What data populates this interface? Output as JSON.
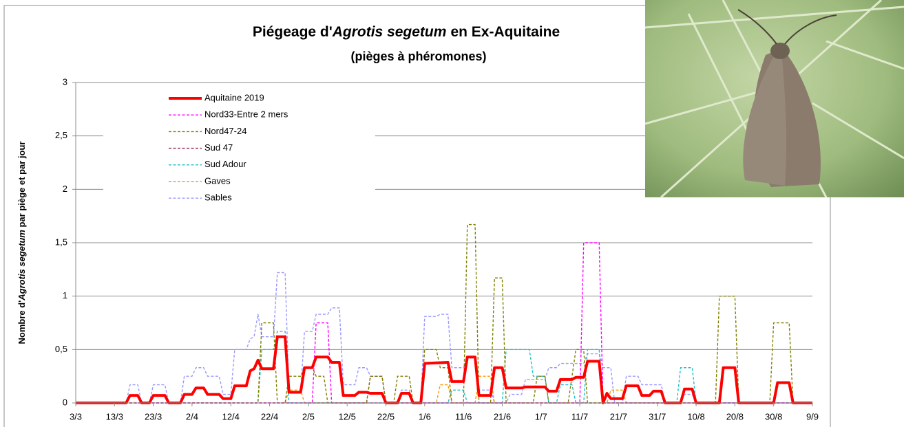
{
  "chart_data": {
    "type": "line",
    "title": [
      "Piégeage d'",
      "Agrotis segetum",
      "en Ex-Aquitaine"
    ],
    "subtitle": "(pièges à phéromones)",
    "y_label": [
      "Nombre d'",
      "Agrotis segetum",
      " par piège et par jour"
    ],
    "xlim": [
      0,
      190
    ],
    "xticks": [
      {
        "value": 0,
        "label": "3/3"
      },
      {
        "value": 10,
        "label": "13/3"
      },
      {
        "value": 20,
        "label": "23/3"
      },
      {
        "value": 30,
        "label": "2/4"
      },
      {
        "value": 40,
        "label": "12/4"
      },
      {
        "value": 50,
        "label": "22/4"
      },
      {
        "value": 60,
        "label": "2/5"
      },
      {
        "value": 70,
        "label": "12/5"
      },
      {
        "value": 80,
        "label": "22/5"
      },
      {
        "value": 90,
        "label": "1/6"
      },
      {
        "value": 100,
        "label": "11/6"
      },
      {
        "value": 110,
        "label": "21/6"
      },
      {
        "value": 120,
        "label": "1/7"
      },
      {
        "value": 130,
        "label": "11/7"
      },
      {
        "value": 140,
        "label": "21/7"
      },
      {
        "value": 150,
        "label": "31/7"
      },
      {
        "value": 160,
        "label": "10/8"
      },
      {
        "value": 170,
        "label": "20/8"
      },
      {
        "value": 180,
        "label": "30/8"
      },
      {
        "value": 190,
        "label": "9/9"
      }
    ],
    "ylim": [
      0,
      3
    ],
    "yticks": [
      0,
      {
        "value": 0.5,
        "label": "0,5"
      },
      1,
      {
        "value": 1.5,
        "label": "1,5"
      },
      2,
      {
        "value": 2.5,
        "label": "2,5"
      },
      3
    ],
    "grid": true,
    "legend": "upper left",
    "series": [
      {
        "name": "Aquitaine 2019",
        "color": "#ff0000",
        "linestyle": "solid",
        "x": [
          0,
          13,
          14,
          16,
          17,
          19,
          20,
          23,
          24,
          27,
          28,
          30,
          31,
          33,
          34,
          37,
          38,
          40,
          41,
          44,
          45,
          46,
          47,
          48,
          51,
          52,
          54,
          55,
          58,
          59,
          61,
          62,
          65,
          66,
          68,
          69,
          72,
          73,
          75,
          76,
          79,
          80,
          83,
          84,
          86,
          87,
          89,
          90,
          96,
          97,
          100,
          101,
          103,
          104,
          107,
          108,
          110,
          111,
          115,
          116,
          121,
          122,
          124,
          125,
          128,
          129,
          131,
          132,
          135,
          136,
          137,
          138,
          141,
          142,
          145,
          146,
          148,
          149,
          151,
          152,
          156,
          157,
          159,
          160,
          166,
          167,
          170,
          171,
          180,
          181,
          184,
          185,
          190
        ],
        "values": [
          0,
          0,
          0.07,
          0.07,
          0,
          0,
          0.07,
          0.07,
          0,
          0,
          0.08,
          0.08,
          0.14,
          0.14,
          0.08,
          0.08,
          0.04,
          0.04,
          0.16,
          0.16,
          0.3,
          0.32,
          0.4,
          0.32,
          0.32,
          0.62,
          0.62,
          0.1,
          0.1,
          0.33,
          0.33,
          0.43,
          0.43,
          0.38,
          0.38,
          0.07,
          0.07,
          0.1,
          0.1,
          0.09,
          0.09,
          0,
          0,
          0.09,
          0.09,
          0,
          0,
          0.37,
          0.38,
          0.2,
          0.2,
          0.43,
          0.43,
          0.07,
          0.07,
          0.33,
          0.33,
          0.14,
          0.14,
          0.15,
          0.15,
          0.11,
          0.11,
          0.22,
          0.22,
          0.24,
          0.24,
          0.39,
          0.39,
          0,
          0.09,
          0.04,
          0.04,
          0.16,
          0.16,
          0.07,
          0.07,
          0.11,
          0.11,
          0,
          0,
          0.13,
          0.13,
          0,
          0,
          0.33,
          0.33,
          0,
          0,
          0.19,
          0.19,
          0,
          0
        ]
      },
      {
        "name": "Nord33-Entre 2 mers",
        "color": "#ff00ff",
        "linestyle": "dashed",
        "x": [
          0,
          61,
          62,
          65,
          66,
          130,
          131,
          135,
          136,
          190
        ],
        "values": [
          0,
          0,
          0.75,
          0.75,
          0,
          0,
          1.5,
          1.5,
          0,
          0
        ]
      },
      {
        "name": "Nord47-24",
        "color": "#808000",
        "linestyle": "dashed",
        "x": [
          0,
          47,
          48,
          51,
          52,
          54,
          55,
          58,
          59,
          61,
          62,
          64,
          65,
          75,
          76,
          79,
          80,
          82,
          83,
          86,
          87,
          89,
          90,
          93,
          94,
          96,
          97,
          100,
          101,
          103,
          104,
          107,
          108,
          110,
          111,
          118,
          119,
          121,
          122,
          127,
          128,
          129,
          131,
          132,
          165,
          166,
          170,
          171,
          179,
          180,
          184,
          185,
          190
        ],
        "values": [
          0,
          0,
          0.75,
          0.75,
          0,
          0,
          0.25,
          0.25,
          0.33,
          0.33,
          0.25,
          0.25,
          0,
          0,
          0.25,
          0.25,
          0,
          0,
          0.25,
          0.25,
          0,
          0,
          0.5,
          0.5,
          0.33,
          0.33,
          0,
          0,
          1.67,
          1.67,
          0,
          0,
          1.17,
          1.17,
          0,
          0,
          0.25,
          0.25,
          0,
          0,
          0.25,
          0.5,
          0.5,
          0,
          0,
          1,
          1,
          0,
          0,
          0.75,
          0.75,
          0,
          0
        ]
      },
      {
        "name": "Sud 47",
        "color": "#8b1c4e",
        "linestyle": "dashed",
        "x": [
          0,
          75,
          76,
          79,
          80,
          190
        ],
        "values": [
          0,
          0,
          0.25,
          0.25,
          0,
          0
        ]
      },
      {
        "name": "Sud Adour",
        "color": "#1fbfca",
        "linestyle": "dashed",
        "x": [
          0,
          47,
          48,
          51,
          52,
          54,
          55,
          96,
          97,
          100,
          101,
          110,
          111,
          117,
          118,
          121,
          122,
          124,
          125,
          128,
          129,
          131,
          132,
          135,
          136,
          155,
          156,
          159,
          160,
          190
        ],
        "values": [
          0,
          0,
          0.5,
          0.5,
          0.67,
          0.67,
          0,
          0,
          0.12,
          0.12,
          0,
          0,
          0.5,
          0.5,
          0.25,
          0.25,
          0,
          0,
          0.17,
          0.17,
          0,
          0,
          0.5,
          0.5,
          0,
          0,
          0.33,
          0.33,
          0,
          0
        ]
      },
      {
        "name": "Gaves",
        "color": "#ff9900",
        "linestyle": "dashed",
        "x": [
          0,
          54,
          55,
          58,
          59,
          93,
          94,
          96,
          97,
          103,
          104,
          107,
          108,
          137,
          138,
          141,
          142,
          190
        ],
        "values": [
          0,
          0,
          0.12,
          0.12,
          0,
          0,
          0.17,
          0.17,
          0,
          0,
          0.25,
          0.25,
          0,
          0,
          0.12,
          0.12,
          0,
          0
        ]
      },
      {
        "name": "Sables",
        "color": "#9999ff",
        "linestyle": "dashed",
        "x": [
          0,
          13,
          14,
          16,
          17,
          19,
          20,
          23,
          24,
          27,
          28,
          30,
          31,
          33,
          34,
          37,
          38,
          40,
          41,
          44,
          45,
          46,
          47,
          48,
          51,
          52,
          54,
          55,
          58,
          59,
          61,
          62,
          65,
          66,
          68,
          69,
          72,
          73,
          75,
          76,
          79,
          80,
          83,
          84,
          86,
          87,
          89,
          90,
          93,
          94,
          96,
          97,
          100,
          101,
          103,
          104,
          107,
          108,
          111,
          112,
          115,
          116,
          121,
          122,
          124,
          125,
          131,
          132,
          135,
          136,
          138,
          139,
          141,
          142,
          145,
          146,
          151,
          152,
          156,
          157,
          159,
          160,
          190
        ],
        "values": [
          0,
          0,
          0.17,
          0.17,
          0,
          0,
          0.17,
          0.17,
          0,
          0,
          0.25,
          0.25,
          0.33,
          0.33,
          0.25,
          0.25,
          0.08,
          0.08,
          0.5,
          0.5,
          0.6,
          0.62,
          0.83,
          0.62,
          0.62,
          1.22,
          1.22,
          0.1,
          0.1,
          0.67,
          0.67,
          0.83,
          0.83,
          0.89,
          0.89,
          0.17,
          0.17,
          0.33,
          0.33,
          0.25,
          0.25,
          0,
          0,
          0.12,
          0.12,
          0,
          0,
          0.81,
          0.81,
          0.83,
          0.83,
          0.33,
          0.33,
          0.42,
          0.42,
          0.12,
          0.12,
          0,
          0,
          0.08,
          0.08,
          0.22,
          0.22,
          0.33,
          0.33,
          0.37,
          0.37,
          0.46,
          0.46,
          0.33,
          0.33,
          0,
          0,
          0.25,
          0.25,
          0.17,
          0.17,
          0,
          0,
          0.08,
          0.08,
          0,
          0
        ]
      }
    ]
  }
}
